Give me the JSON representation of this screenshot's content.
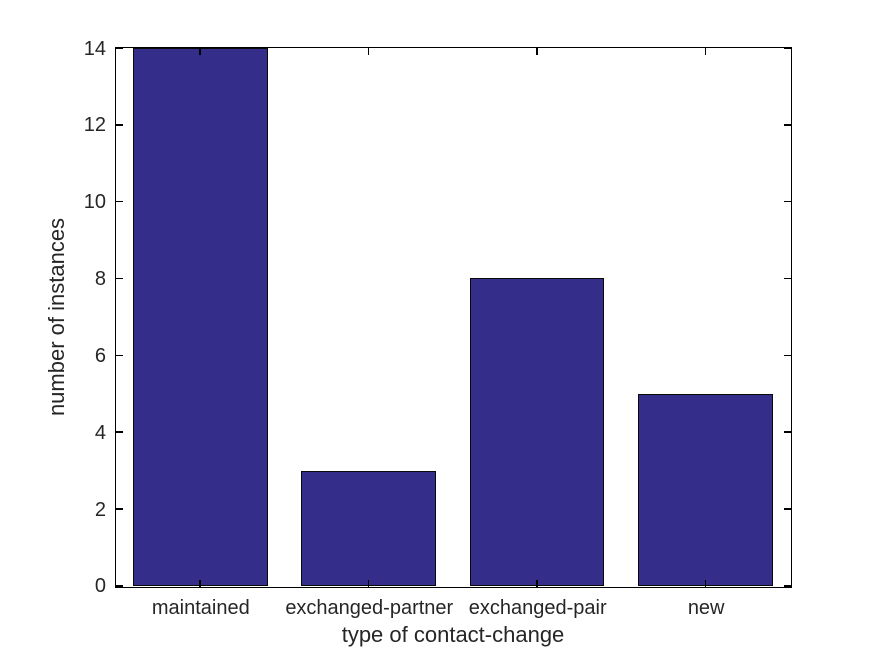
{
  "chart_data": {
    "type": "bar",
    "title": "",
    "categories": [
      "maintained",
      "exchanged-partner",
      "exchanged-pair",
      "new"
    ],
    "values": [
      14,
      3,
      8,
      5
    ],
    "xlabel": "type of contact-change",
    "ylabel": "number of instances",
    "ylim": [
      0,
      14
    ],
    "yticks": [
      0,
      2,
      4,
      6,
      8,
      10,
      12,
      14
    ],
    "bar_width_fraction": 0.8,
    "grid": false,
    "legend": null,
    "axes_box": true,
    "tick_direction": "in",
    "colors": {
      "bar_fill": "#352d8a",
      "bar_edge": "#0a0a0a",
      "axis_line": "#000000",
      "text": "#262626",
      "background": "#ffffff"
    }
  }
}
